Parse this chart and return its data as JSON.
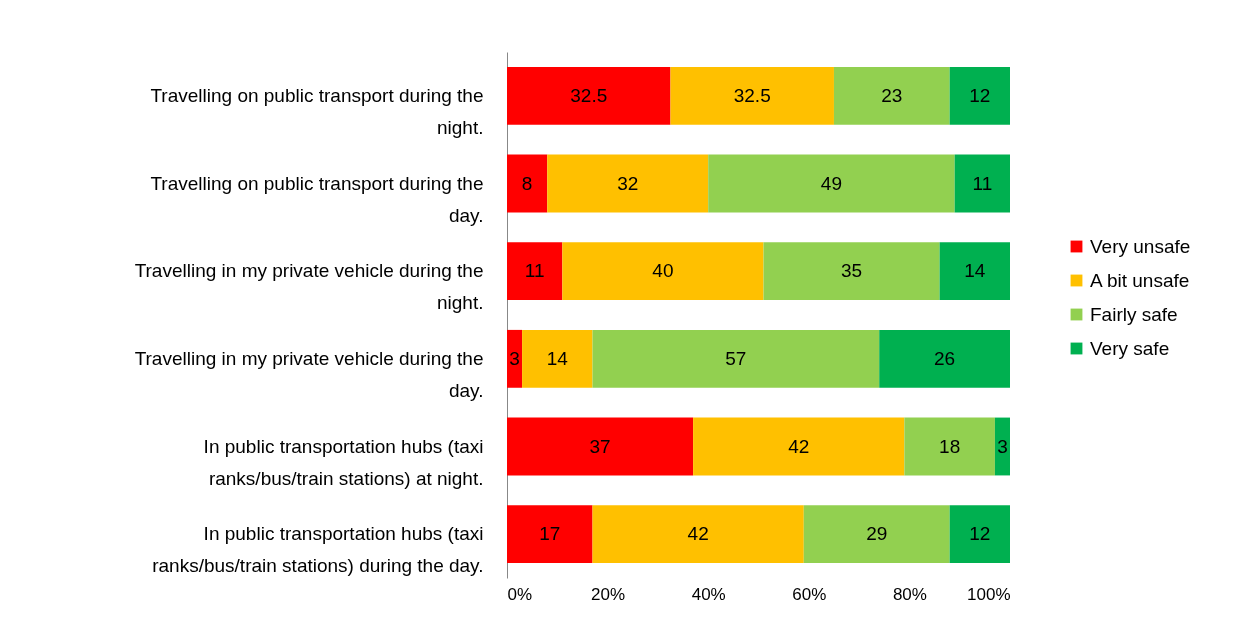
{
  "chart_data": {
    "type": "bar",
    "orientation": "horizontal",
    "stacked": true,
    "categories": [
      "Travelling on public transport during the night.",
      "Travelling on public transport during the day.",
      "Travelling in my private vehicle during the night.",
      "Travelling in my private vehicle during the day.",
      "In public transportation hubs (taxi ranks/bus/train stations) at night.",
      "In public transportation hubs (taxi ranks/bus/train stations) during the day."
    ],
    "series": [
      {
        "name": "Very unsafe",
        "color": "#ff0000",
        "values": [
          32.5,
          8,
          11,
          3,
          37,
          17
        ]
      },
      {
        "name": "A bit unsafe",
        "color": "#ffc000",
        "values": [
          32.5,
          32,
          40,
          14,
          42,
          42
        ]
      },
      {
        "name": "Fairly safe",
        "color": "#92d050",
        "values": [
          23,
          49,
          35,
          57,
          18,
          29
        ]
      },
      {
        "name": "Very safe",
        "color": "#00b050",
        "values": [
          12,
          11,
          14,
          26,
          3,
          12
        ]
      }
    ],
    "xlim": [
      0,
      100
    ],
    "xticks": [
      {
        "value": 0,
        "label": "0%"
      },
      {
        "value": 20,
        "label": "20%"
      },
      {
        "value": 40,
        "label": "40%"
      },
      {
        "value": 60,
        "label": "60%"
      },
      {
        "value": 80,
        "label": "80%"
      },
      {
        "value": 100,
        "label": "100%"
      }
    ],
    "data_labels": true,
    "legend": "right",
    "grid": false
  }
}
